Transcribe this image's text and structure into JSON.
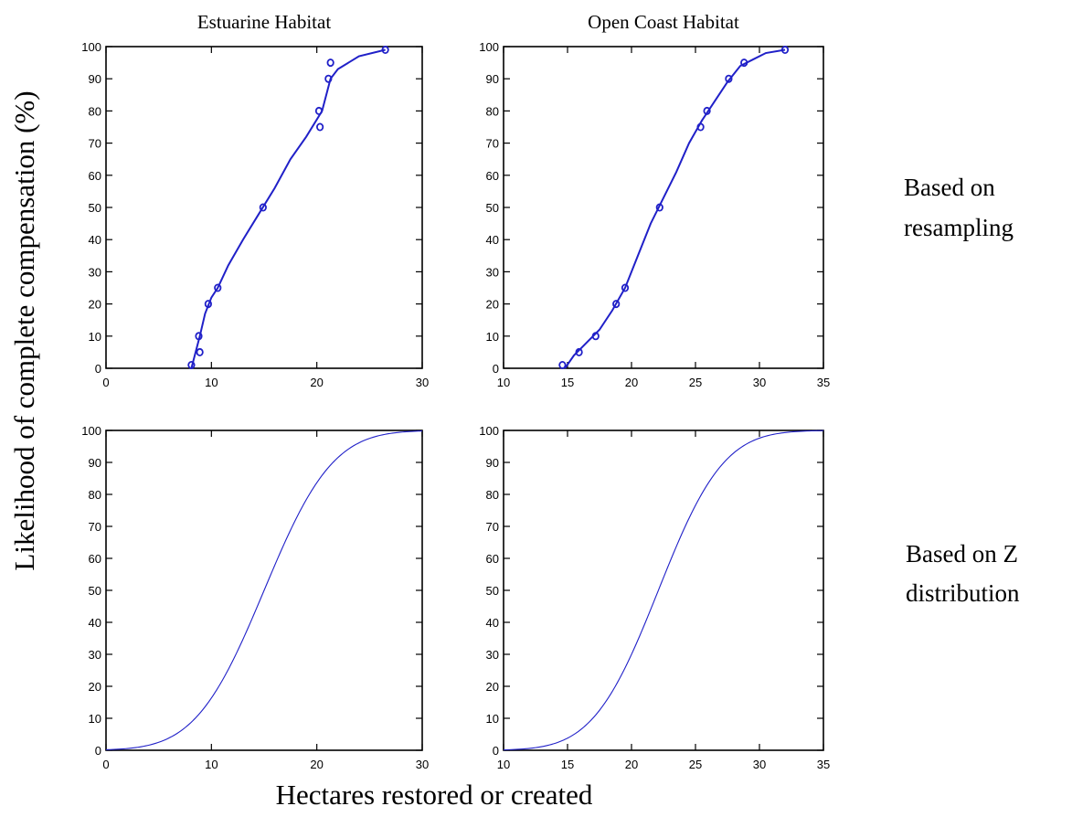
{
  "figure": {
    "ylabel": "Likelihood of complete compensation (%)",
    "xlabel": "Hectares restored or created",
    "column_titles": [
      "Estuarine Habitat",
      "Open Coast Habitat"
    ],
    "row_labels": [
      [
        "Based on",
        "resampling"
      ],
      [
        "Based on Z",
        "distribution"
      ]
    ],
    "line_color": "#2020c8"
  },
  "chart_data": [
    {
      "type": "line",
      "panel": "estuarine-resampling",
      "title": "Estuarine Habitat",
      "xlim": [
        0,
        30
      ],
      "ylim": [
        0,
        100
      ],
      "xticks": [
        0,
        10,
        20,
        30
      ],
      "yticks": [
        0,
        10,
        20,
        30,
        40,
        50,
        60,
        70,
        80,
        90,
        100
      ],
      "grid": false,
      "markers": {
        "x": [
          8.1,
          8.9,
          8.8,
          9.7,
          10.6,
          14.9,
          20.3,
          20.2,
          21.1,
          21.3,
          26.5
        ],
        "y": [
          1,
          5,
          10,
          20,
          25,
          50,
          75,
          80,
          90,
          95,
          99
        ]
      },
      "curve": {
        "x": [
          8.1,
          8.5,
          8.9,
          9.4,
          10.0,
          10.6,
          11.6,
          13.0,
          14.5,
          16.0,
          17.5,
          19.0,
          20.5,
          21.3,
          22.0,
          24.0,
          26.5
        ],
        "y": [
          0,
          5,
          10,
          17,
          22,
          25,
          32,
          40,
          48,
          56,
          65,
          72,
          80,
          90,
          93,
          97,
          99
        ]
      }
    },
    {
      "type": "line",
      "panel": "open-coast-resampling",
      "title": "Open Coast Habitat",
      "xlim": [
        10,
        35
      ],
      "ylim": [
        0,
        100
      ],
      "xticks": [
        10,
        15,
        20,
        25,
        30,
        35
      ],
      "yticks": [
        0,
        10,
        20,
        30,
        40,
        50,
        60,
        70,
        80,
        90,
        100
      ],
      "grid": false,
      "markers": {
        "x": [
          14.6,
          15.9,
          17.2,
          18.8,
          19.5,
          22.2,
          25.4,
          25.9,
          27.6,
          28.8,
          32.0
        ],
        "y": [
          1,
          5,
          10,
          20,
          25,
          50,
          75,
          80,
          90,
          95,
          99
        ]
      },
      "curve": {
        "x": [
          14.8,
          15.5,
          16.5,
          17.5,
          18.5,
          19.5,
          20.5,
          21.5,
          22.5,
          23.5,
          24.5,
          25.5,
          26.5,
          27.5,
          28.5,
          29.5,
          30.5,
          32.0
        ],
        "y": [
          0,
          4,
          8,
          12,
          18,
          25,
          35,
          45,
          53,
          61,
          70,
          77,
          83,
          89,
          94,
          96,
          98,
          99
        ]
      }
    },
    {
      "type": "line",
      "panel": "estuarine-z",
      "xlim": [
        0,
        30
      ],
      "ylim": [
        0,
        100
      ],
      "xticks": [
        0,
        10,
        20,
        30
      ],
      "yticks": [
        0,
        10,
        20,
        30,
        40,
        50,
        60,
        70,
        80,
        90,
        100
      ],
      "grid": false,
      "normal_cdf": {
        "mean": 15.0,
        "sd": 5.1
      }
    },
    {
      "type": "line",
      "panel": "open-coast-z",
      "xlim": [
        10,
        35
      ],
      "ylim": [
        0,
        100
      ],
      "xticks": [
        10,
        15,
        20,
        25,
        30,
        35
      ],
      "yticks": [
        0,
        10,
        20,
        30,
        40,
        50,
        60,
        70,
        80,
        90,
        100
      ],
      "grid": false,
      "normal_cdf": {
        "mean": 22.1,
        "sd": 4.0
      }
    }
  ]
}
